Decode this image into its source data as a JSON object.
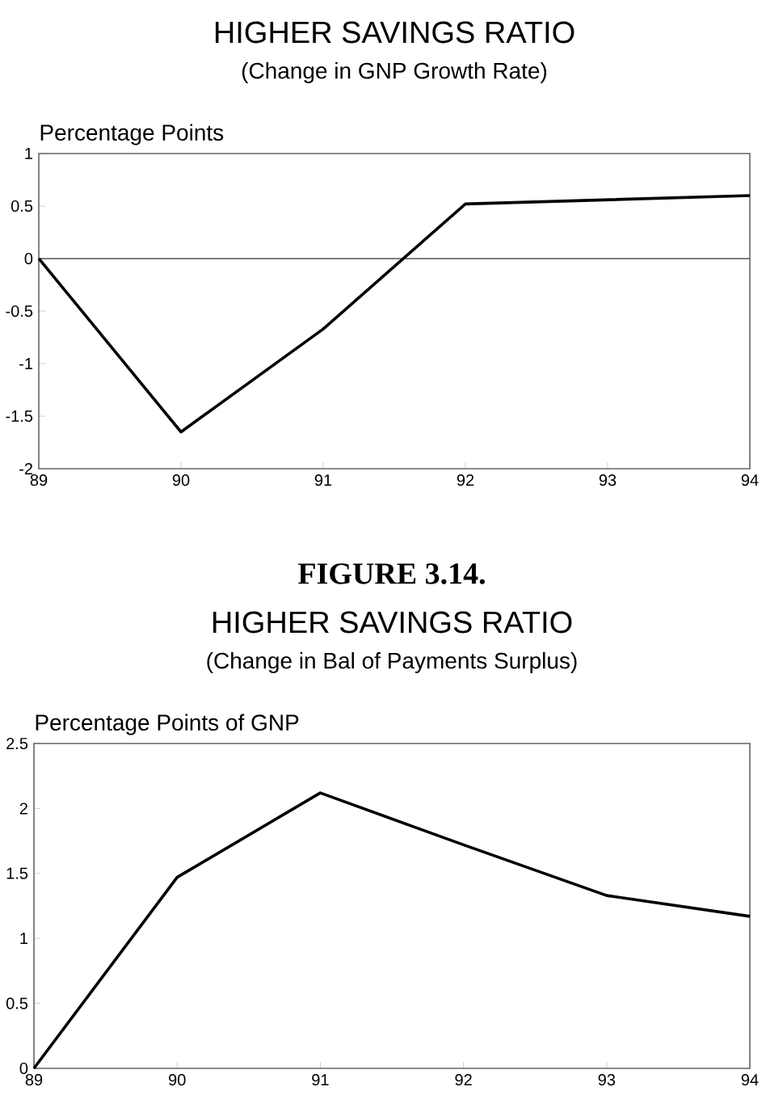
{
  "chart_data": [
    {
      "type": "line",
      "title": "HIGHER SAVINGS RATIO",
      "subtitle": "(Change in GNP Growth Rate)",
      "ylabel": "Percentage Points",
      "x": [
        89,
        90,
        91,
        92,
        93,
        94
      ],
      "series": [
        {
          "color": "#000000",
          "values": [
            0,
            -1.65,
            -0.67,
            0.52,
            0.56,
            0.6
          ]
        }
      ],
      "xlim": [
        89,
        94
      ],
      "xticks": [
        89,
        90,
        91,
        92,
        93,
        94
      ],
      "ylim": [
        -2,
        1
      ],
      "yticks": [
        -2,
        -1.5,
        -1,
        -0.5,
        0,
        0.5,
        1
      ],
      "ref_lines": [
        {
          "axis": "y",
          "value": 0,
          "color": "#555555"
        }
      ]
    },
    {
      "type": "line",
      "title": "HIGHER SAVINGS RATIO",
      "subtitle": "(Change in Bal of Payments Surplus)",
      "ylabel": "Percentage Points of GNP",
      "annotations": [
        "FIGURE 3.14."
      ],
      "x": [
        89,
        90,
        91,
        92,
        93,
        94
      ],
      "series": [
        {
          "color": "#000000",
          "values": [
            0,
            1.47,
            2.12,
            1.72,
            1.33,
            1.17
          ]
        }
      ],
      "xlim": [
        89,
        94
      ],
      "xticks": [
        89,
        90,
        91,
        92,
        93,
        94
      ],
      "ylim": [
        0,
        2.5
      ],
      "yticks": [
        0,
        0.5,
        1,
        1.5,
        2,
        2.5
      ]
    }
  ]
}
